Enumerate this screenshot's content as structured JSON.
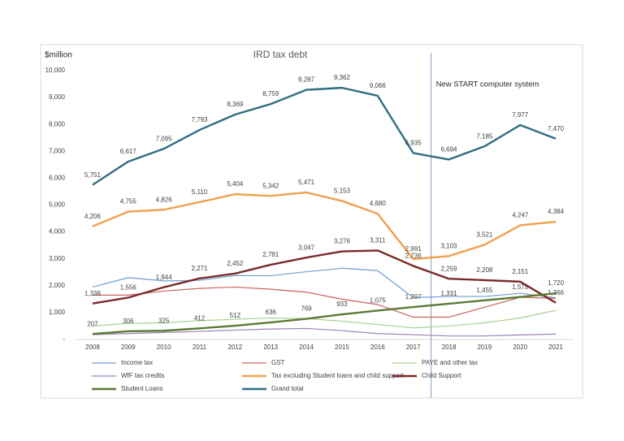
{
  "chart_data": {
    "type": "line",
    "title": "IRD tax debt",
    "y_label": "$million",
    "x": [
      2008,
      2009,
      2010,
      2011,
      2012,
      2013,
      2014,
      2015,
      2016,
      2017,
      2018,
      2019,
      2020,
      2021
    ],
    "xlim": [
      2007.5,
      2021.5
    ],
    "ylim": [
      0,
      10000
    ],
    "yticks": [
      {
        "value": 0,
        "label": "-"
      },
      {
        "value": 1000,
        "label": "1,000"
      },
      {
        "value": 2000,
        "label": "2,000"
      },
      {
        "value": 3000,
        "label": "3,000"
      },
      {
        "value": 4000,
        "label": "4,000"
      },
      {
        "value": 5000,
        "label": "5,000"
      },
      {
        "value": 6000,
        "label": "6,000"
      },
      {
        "value": 7000,
        "label": "7,000"
      },
      {
        "value": 8000,
        "label": "8,000"
      },
      {
        "value": 9000,
        "label": "9,000"
      },
      {
        "value": 10000,
        "label": "10,000"
      }
    ],
    "grid": false,
    "annotation": {
      "text": "New START computer system",
      "x": 2017.5
    },
    "series": [
      {
        "name": "Income tax",
        "color": "#6f9fd0",
        "width": 1.2,
        "values": [
          1950,
          2300,
          2180,
          2200,
          2380,
          2370,
          2520,
          2650,
          2560,
          1560,
          1600,
          1600,
          1720,
          1550
        ]
      },
      {
        "name": "GST",
        "color": "#c9625c",
        "width": 1.2,
        "values": [
          1650,
          1650,
          1800,
          1900,
          1950,
          1870,
          1760,
          1500,
          1300,
          830,
          830,
          1200,
          1570,
          1530
        ]
      },
      {
        "name": "PAYE and other tax",
        "color": "#a9d18e",
        "width": 1.2,
        "values": [
          500,
          600,
          620,
          700,
          750,
          800,
          780,
          680,
          560,
          430,
          500,
          620,
          800,
          1080
        ]
      },
      {
        "name": "WfF tax credits",
        "color": "#9d80b8",
        "width": 1.2,
        "values": [
          180,
          220,
          260,
          300,
          350,
          390,
          410,
          330,
          220,
          180,
          130,
          130,
          170,
          200
        ]
      },
      {
        "name": "Tax excluding Student loans and child support",
        "color": "#f0a04f",
        "width": 2.4,
        "values": [
          4206,
          4755,
          4826,
          5110,
          5404,
          5342,
          5471,
          5153,
          4680,
          2991,
          3103,
          3521,
          4247,
          4384
        ],
        "value_labels": [
          "4,206",
          "4,755",
          "4,826",
          "5,110",
          "5,404",
          "5,342",
          "5,471",
          "5,153",
          "4,680",
          "2,991",
          "3,103",
          "3,521",
          "4,247",
          "4,384"
        ]
      },
      {
        "name": "Child Support",
        "color": "#7a2a2a",
        "width": 2.4,
        "values": [
          1338,
          1556,
          1944,
          2271,
          2452,
          2781,
          3047,
          3276,
          3311,
          2736,
          2259,
          2208,
          2151,
          1366
        ],
        "value_labels": [
          "1,338",
          "1,556",
          "1,944",
          "2,271",
          "2,452",
          "2,781",
          "3,047",
          "3,276",
          "3,311",
          "2,736",
          "2,259",
          "2,208",
          "2,151",
          "1,366"
        ]
      },
      {
        "name": "Student Loans",
        "color": "#5b7a34",
        "width": 2.4,
        "values": [
          207,
          306,
          325,
          412,
          512,
          636,
          769,
          933,
          1075,
          1207,
          1331,
          1455,
          1579,
          1720
        ],
        "value_labels": [
          "207",
          "306",
          "325",
          "412",
          "512",
          "636",
          "769",
          "933",
          "1,075",
          "1,207",
          "1,331",
          "1,455",
          "1,579",
          "1,720"
        ]
      },
      {
        "name": "Grand total",
        "color": "#2f6e80",
        "width": 2.4,
        "values": [
          5751,
          6617,
          7095,
          7793,
          8369,
          8759,
          9287,
          9362,
          9066,
          6935,
          6694,
          7185,
          7977,
          7470
        ],
        "value_labels": [
          "5,751",
          "6,617",
          "7,095",
          "7,793",
          "8,369",
          "8,759",
          "9,287",
          "9,362",
          "9,066",
          "6,935",
          "6,694",
          "7,185",
          "7,977",
          "7,470"
        ]
      }
    ]
  }
}
